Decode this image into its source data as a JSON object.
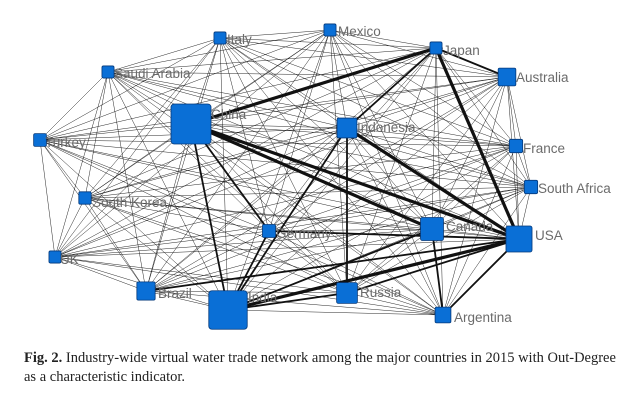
{
  "network": {
    "nodes": [
      {
        "id": "Italy",
        "label": "Italy",
        "weight": 0.1
      },
      {
        "id": "Mexico",
        "label": "Mexico",
        "weight": 0.1
      },
      {
        "id": "Japan",
        "label": "Japan",
        "weight": 0.1
      },
      {
        "id": "Saudi Arabia",
        "label": "Saudi Arabia",
        "weight": 0.1
      },
      {
        "id": "Australia",
        "label": "Australia",
        "weight": 0.28
      },
      {
        "id": "China",
        "label": "China",
        "weight": 1.0
      },
      {
        "id": "Indonesia",
        "label": "Indonesia",
        "weight": 0.35
      },
      {
        "id": "Turkey",
        "label": "Turkey",
        "weight": 0.12
      },
      {
        "id": "France",
        "label": "France",
        "weight": 0.14
      },
      {
        "id": "South Africa",
        "label": "South Africa",
        "weight": 0.14
      },
      {
        "id": "South Korea",
        "label": "South Korea",
        "weight": 0.11
      },
      {
        "id": "Germany",
        "label": "Germany",
        "weight": 0.13
      },
      {
        "id": "Canada",
        "label": "Canada",
        "weight": 0.45
      },
      {
        "id": "USA",
        "label": "USA",
        "weight": 0.55
      },
      {
        "id": "UK",
        "label": "UK",
        "weight": 0.1
      },
      {
        "id": "Brazil",
        "label": "Brazil",
        "weight": 0.3
      },
      {
        "id": "India",
        "label": "India",
        "weight": 0.95
      },
      {
        "id": "Russia",
        "label": "Russia",
        "weight": 0.38
      },
      {
        "id": "Argentina",
        "label": "Argentina",
        "weight": 0.22
      }
    ],
    "heavy_edges": [
      [
        "Japan",
        "China"
      ],
      [
        "China",
        "Canada"
      ],
      [
        "China",
        "USA"
      ],
      [
        "Indonesia",
        "USA"
      ],
      [
        "Japan",
        "USA"
      ],
      [
        "USA",
        "India"
      ],
      [
        "USA",
        "Russia"
      ],
      [
        "Canada",
        "India"
      ],
      [
        "USA",
        "Brazil"
      ],
      [
        "China",
        "India"
      ],
      [
        "Australia",
        "Japan"
      ],
      [
        "Russia",
        "India"
      ],
      [
        "Japan",
        "Indonesia"
      ],
      [
        "Indonesia",
        "India"
      ],
      [
        "Germany",
        "India"
      ],
      [
        "USA",
        "Argentina"
      ],
      [
        "China",
        "Germany"
      ],
      [
        "Indonesia",
        "Russia"
      ],
      [
        "Canada",
        "Argentina"
      ],
      [
        "USA",
        "Germany"
      ]
    ],
    "colors": {
      "node": "#0a6fd6",
      "node_stroke": "#05397a",
      "edge": "#111111",
      "label": "#6b6b6b"
    }
  },
  "caption": {
    "label": "Fig. 2.",
    "text": "Industry-wide virtual water trade network among the major countries in 2015 with Out-Degree as a characteristic indicator."
  }
}
